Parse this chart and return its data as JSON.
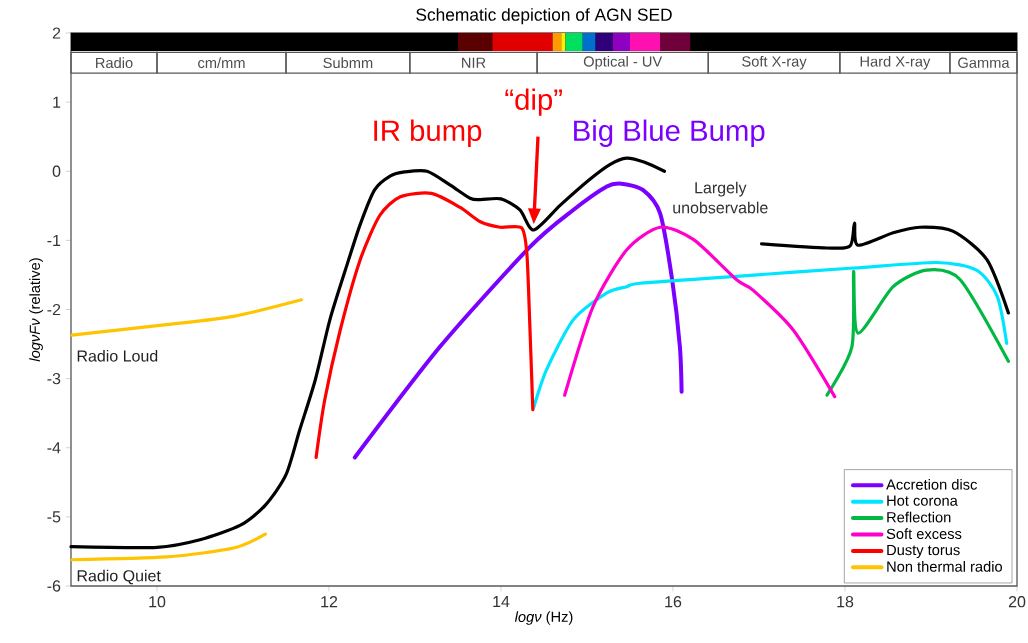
{
  "chart_data": {
    "type": "line",
    "title": "Schematic depiction of AGN SED",
    "xlabel": "*logν* (Hz)",
    "ylabel": "*logνFν* (relative)",
    "xlim": [
      9,
      20
    ],
    "ylim": [
      -6,
      2
    ],
    "xticks": [
      10,
      12,
      14,
      16,
      18,
      20
    ],
    "yticks": [
      -6,
      -5,
      -4,
      -3,
      -2,
      -1,
      0,
      1,
      2
    ],
    "legend": "bottom right",
    "series": [
      {
        "color": "#000000",
        "x": [
          9,
          10,
          10.5,
          10.97,
          11.26,
          11.5,
          11.66,
          11.84,
          12.01,
          12.19,
          12.36,
          12.53,
          12.71,
          12.88,
          13.14,
          13.41,
          13.64,
          13.76,
          14.0,
          14.22,
          14.38,
          14.69,
          15.03,
          15.27,
          15.46,
          15.67,
          15.9
        ],
        "values": [
          -5.43,
          -5.44,
          -5.33,
          -5.12,
          -4.83,
          -4.39,
          -3.74,
          -3.02,
          -2.15,
          -1.43,
          -0.78,
          -0.27,
          -0.07,
          -0.01,
          0.0,
          -0.2,
          -0.39,
          -0.41,
          -0.4,
          -0.56,
          -0.85,
          -0.49,
          -0.12,
          0.1,
          0.19,
          0.13,
          0.0
        ]
      },
      {
        "color": "#000000",
        "x": [
          17.03,
          17.79,
          18.06,
          18.11,
          18.15,
          18.56,
          18.87,
          19.26,
          19.65,
          19.9
        ],
        "values": [
          -1.05,
          -1.11,
          -1.08,
          -0.75,
          -1.07,
          -0.89,
          -0.81,
          -0.87,
          -1.28,
          -2.05
        ]
      },
      {
        "name": "Accretion disc",
        "color": "#7a00ff",
        "x": [
          12.3,
          13.29,
          14.34,
          14.84,
          15.23,
          15.4,
          15.65,
          15.85,
          15.99,
          16.08,
          16.1
        ],
        "values": [
          -4.14,
          -2.54,
          -1.09,
          -0.56,
          -0.22,
          -0.18,
          -0.27,
          -0.61,
          -1.57,
          -2.54,
          -3.19
        ]
      },
      {
        "name": "Hot corona",
        "color": "#00e5ff",
        "x": [
          14.38,
          14.53,
          14.84,
          15.23,
          15.46,
          15.62,
          16.74,
          18.1,
          19.07,
          19.53,
          19.77,
          19.88
        ],
        "values": [
          -3.42,
          -2.87,
          -2.15,
          -1.76,
          -1.67,
          -1.62,
          -1.52,
          -1.4,
          -1.32,
          -1.43,
          -1.81,
          -2.49
        ]
      },
      {
        "name": "Reflection",
        "color": "#00b843",
        "x": [
          17.79,
          18.08,
          18.1,
          18.15,
          18.56,
          18.95,
          19.34,
          19.9
        ],
        "values": [
          -3.24,
          -2.54,
          -1.45,
          -2.34,
          -1.67,
          -1.43,
          -1.57,
          -2.75
        ]
      },
      {
        "name": "Soft excess",
        "color": "#ff00cc",
        "x": [
          14.74,
          15.07,
          15.46,
          15.85,
          16.24,
          16.74,
          16.93,
          17.4,
          17.88
        ],
        "values": [
          -3.24,
          -1.96,
          -1.14,
          -0.81,
          -0.99,
          -1.57,
          -1.72,
          -2.3,
          -3.26
        ]
      },
      {
        "name": "Dusty torus",
        "color": "#ff0000",
        "x": [
          11.85,
          11.95,
          12.13,
          12.36,
          12.59,
          12.83,
          13.19,
          13.52,
          13.76,
          13.99,
          14.24,
          14.3,
          14.33,
          14.37
        ],
        "values": [
          -4.14,
          -3.31,
          -2.3,
          -1.29,
          -0.64,
          -0.37,
          -0.32,
          -0.52,
          -0.73,
          -0.81,
          -0.82,
          -1.18,
          -2.05,
          -3.45
        ]
      },
      {
        "name": "Non thermal radio",
        "color": "#ffc400",
        "x": [
          9.01,
          10.11,
          10.89,
          11.68
        ],
        "values": [
          -2.37,
          -2.22,
          -2.1,
          -1.86
        ]
      },
      {
        "color": "#ffc400",
        "x": [
          9.01,
          10.11,
          10.89,
          11.26
        ],
        "values": [
          -5.62,
          -5.58,
          -5.45,
          -5.25
        ]
      }
    ],
    "annotations": [
      {
        "text": "IR bump",
        "x": 13.19,
        "y": -0.32
      },
      "“dip”",
      {
        "text": "Big Blue Bump",
        "x": 15.4,
        "y": -0.18
      },
      "Largely unobservable",
      {
        "text": "Radio Loud",
        "x": 9.01,
        "y": -2.37
      },
      {
        "text": "Radio Quiet",
        "x": 9.01,
        "y": -5.62
      },
      "Radio",
      "cm/mm",
      "Submm",
      "NIR",
      "Optical - UV",
      "Soft X-ray",
      "Hard X-ray",
      "Gamma"
    ]
  }
}
